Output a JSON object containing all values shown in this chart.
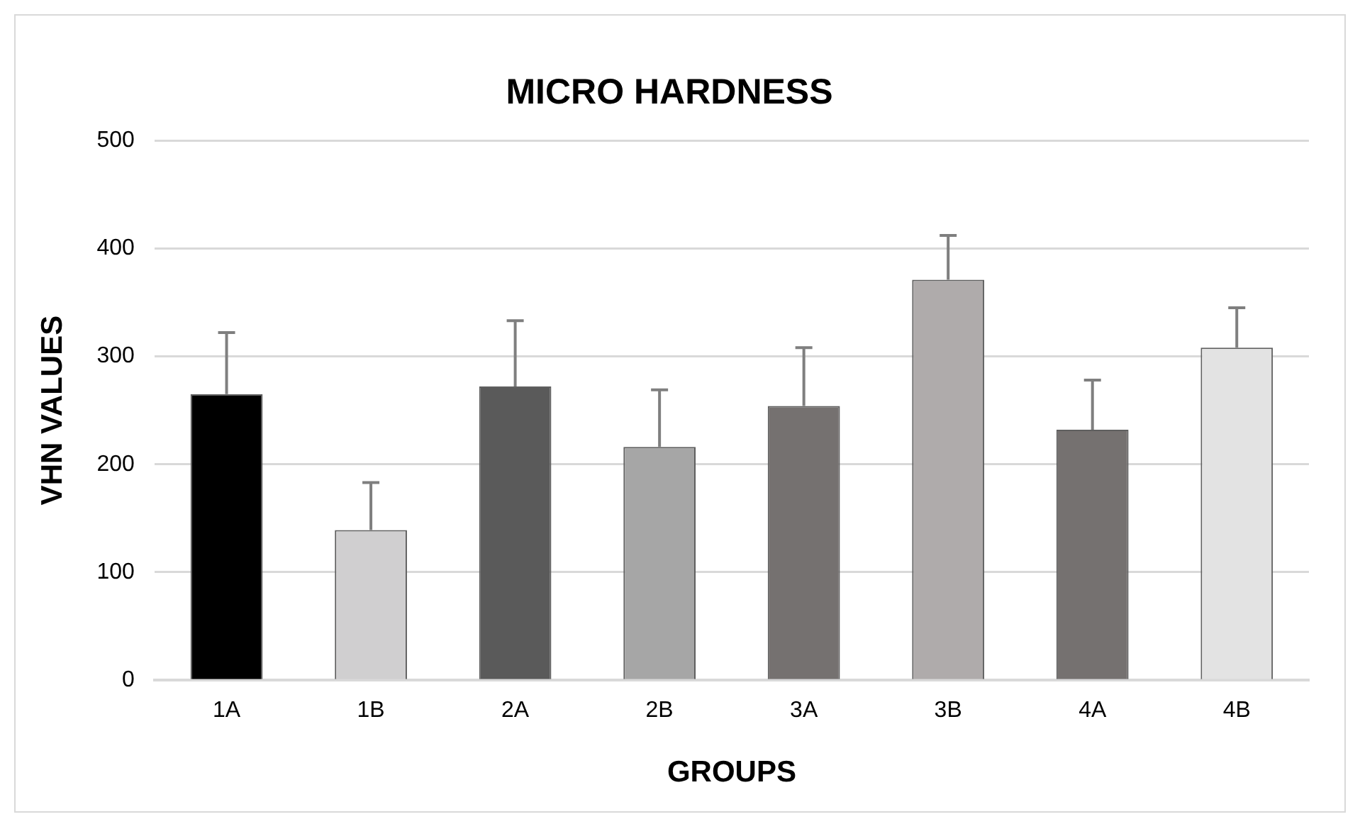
{
  "chart_data": {
    "type": "bar",
    "title": "MICRO HARDNESS",
    "xlabel": "GROUPS",
    "ylabel": "VHN VALUES",
    "categories": [
      "1A",
      "1B",
      "2A",
      "2B",
      "3A",
      "3B",
      "4A",
      "4B"
    ],
    "values": [
      265,
      139,
      272,
      216,
      254,
      371,
      232,
      308
    ],
    "colors": [
      "#000000",
      "#d0cfd0",
      "#5a5a5a",
      "#a6a6a6",
      "#757170",
      "#afabab",
      "#757170",
      "#e3e3e3"
    ],
    "errors": [
      [
        265,
        322
      ],
      [
        139,
        183
      ],
      [
        272,
        333
      ],
      [
        216,
        269
      ],
      [
        254,
        308
      ],
      [
        371,
        412
      ],
      [
        232,
        278
      ],
      [
        308,
        345
      ]
    ],
    "ylim": [
      0,
      500
    ],
    "yticks": [
      0,
      100,
      200,
      300,
      400,
      500
    ],
    "grid": "y",
    "legend": false
  }
}
